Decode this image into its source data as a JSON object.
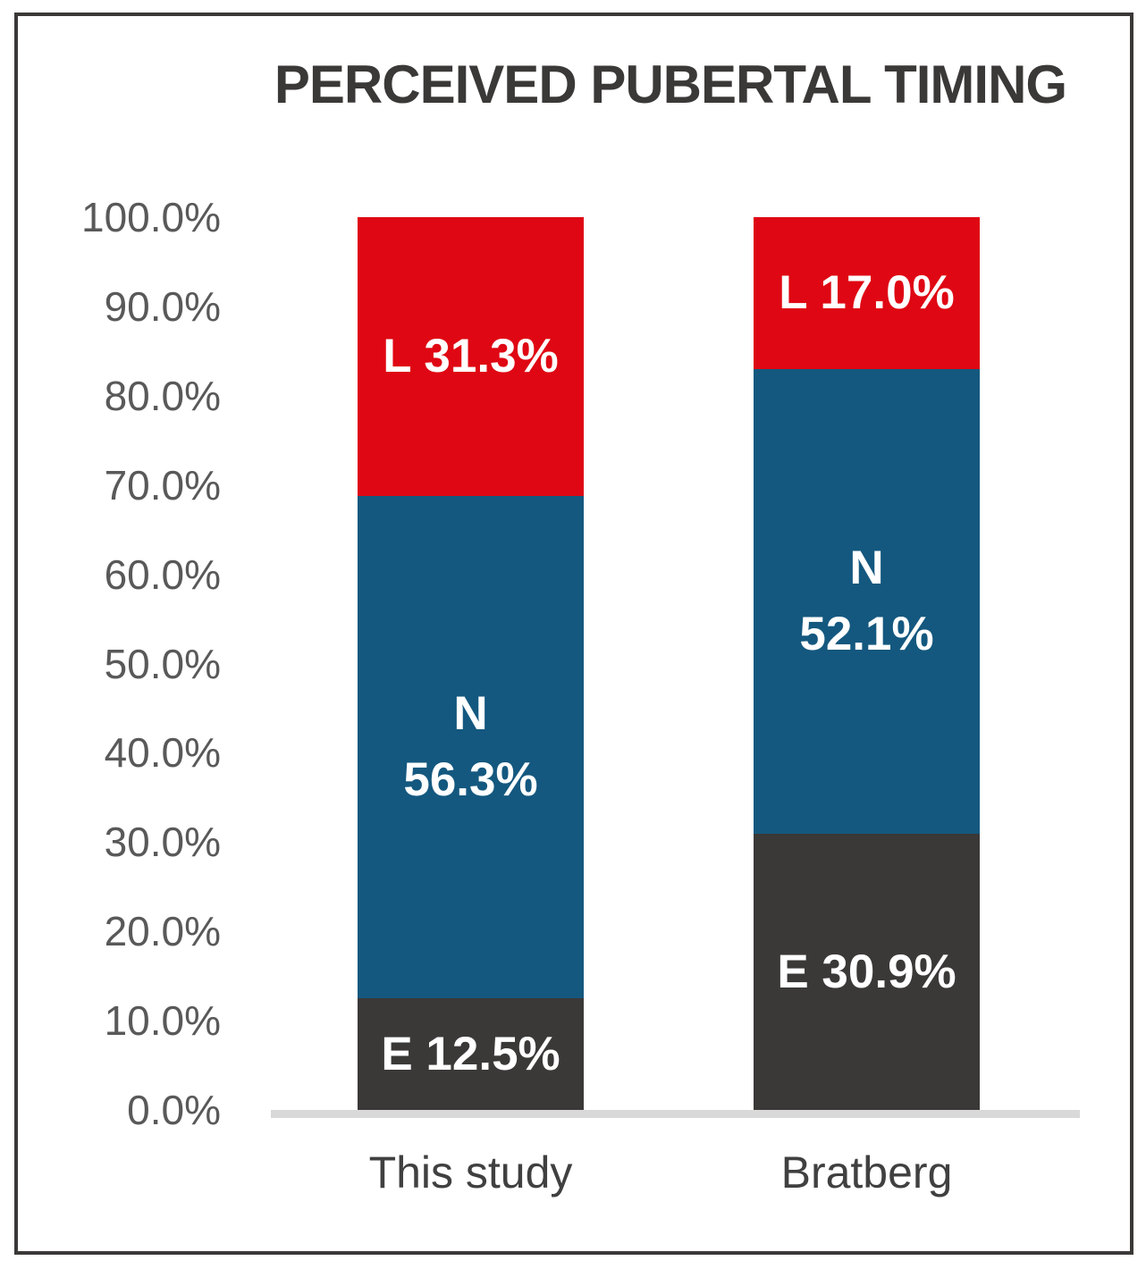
{
  "chart": {
    "title": "PERCEIVED PUBERTAL TIMING"
  },
  "chart_data": {
    "type": "bar",
    "subtype": "stacked-100-percent-column",
    "title": "PERCEIVED PUBERTAL TIMING",
    "categories": [
      "This study",
      "Bratberg"
    ],
    "series": [
      {
        "name": "E",
        "color": "#3B3838",
        "values": [
          12.5,
          30.9
        ]
      },
      {
        "name": "N",
        "color": "#14587F",
        "values": [
          56.3,
          52.1
        ]
      },
      {
        "name": "L",
        "color": "#DF0713",
        "values": [
          31.3,
          17.0
        ]
      }
    ],
    "segment_labels": [
      [
        [
          "E 12.5%"
        ],
        [
          "N",
          "56.3%"
        ],
        [
          "L 31.3%"
        ]
      ],
      [
        [
          "E 30.9%"
        ],
        [
          "N",
          "52.1%"
        ],
        [
          "L 17.0%"
        ]
      ]
    ],
    "y_ticks": [
      "100.0%",
      "90.0%",
      "80.0%",
      "70.0%",
      "60.0%",
      "50.0%",
      "40.0%",
      "30.0%",
      "20.0%",
      "10.0%",
      "0.0%"
    ],
    "ylim": [
      0,
      100
    ],
    "xlabel": "",
    "ylabel": "",
    "grid": false,
    "legend_position": "none",
    "label_text_color": "#FFFFFF",
    "axis_line_color": "#D9D9D9",
    "tick_text_color": "#595959",
    "category_text_color": "#404040",
    "title_text_color": "#3B3838",
    "frame_border_color": "#3B3838"
  }
}
